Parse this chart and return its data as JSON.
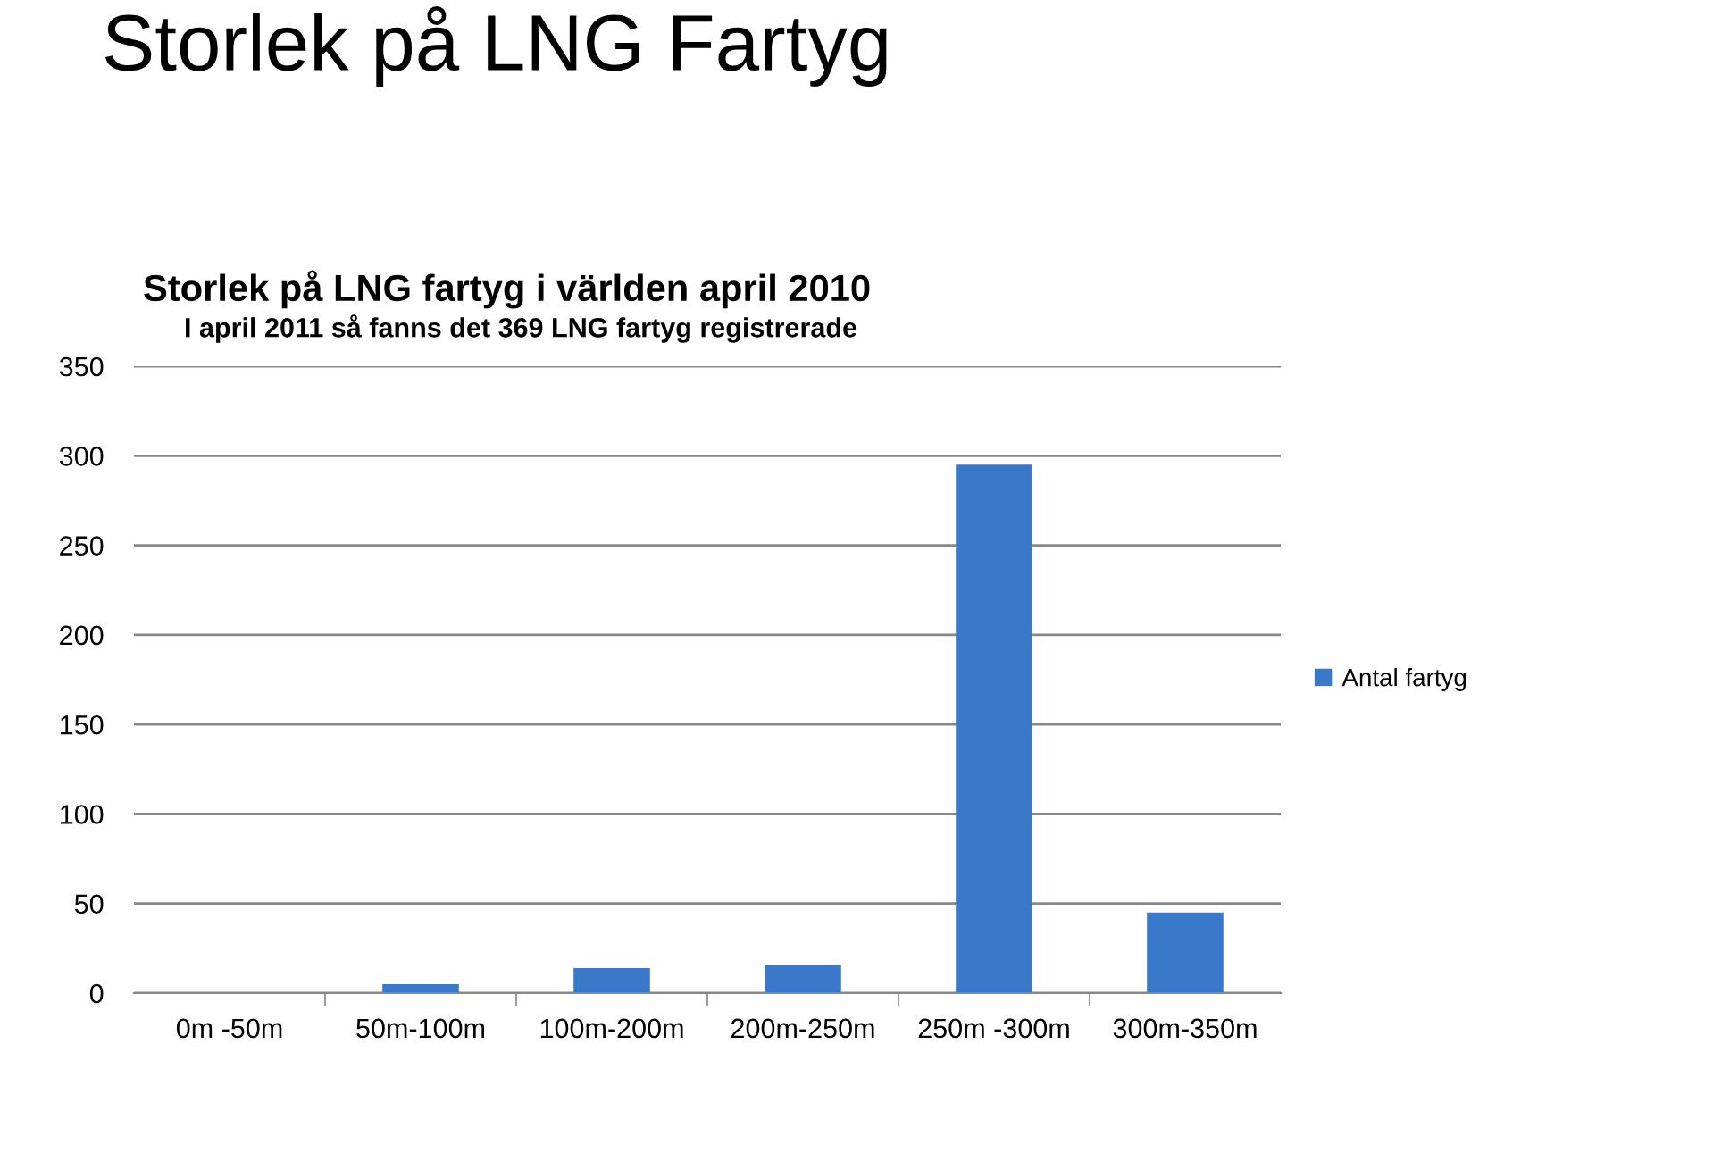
{
  "chart_data": {
    "type": "bar",
    "title": "Storlek på LNG fartyg i världen april 2010",
    "subtitle": "I april 2011 så fanns det 369 LNG fartyg registrerade",
    "annotations": [
      "Storlek på LNG Fartyg"
    ],
    "categories": [
      "0m -50m",
      "50m-100m",
      "100m-200m",
      "200m-250m",
      "250m -300m",
      "300m-350m"
    ],
    "series": [
      {
        "name": "Antal fartyg",
        "color": "#3a78c9",
        "values": [
          0,
          5,
          14,
          16,
          295,
          45
        ]
      }
    ],
    "ylim": [
      0,
      350
    ],
    "yticks": [
      0,
      50,
      100,
      150,
      200,
      250,
      300,
      350
    ],
    "grid": "y",
    "legend": "right"
  }
}
